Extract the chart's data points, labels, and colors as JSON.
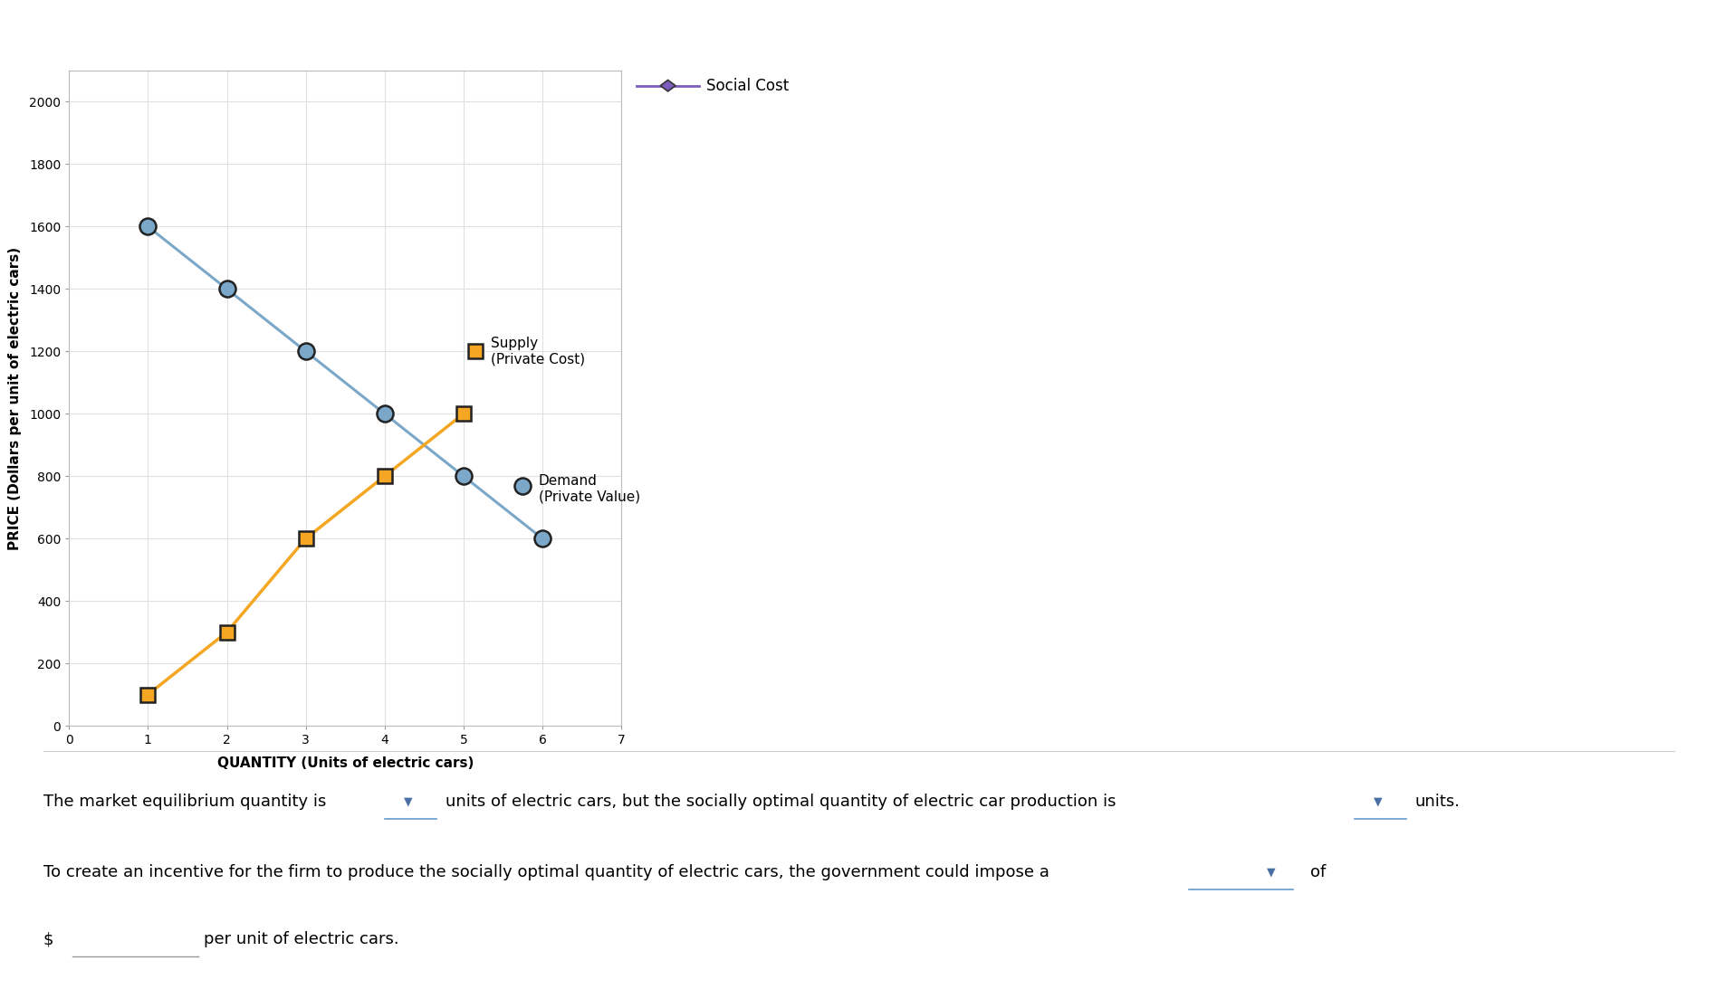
{
  "demand_x": [
    1,
    2,
    3,
    4,
    5,
    6
  ],
  "demand_y": [
    1600,
    1400,
    1200,
    1000,
    800,
    600
  ],
  "supply_x": [
    1,
    2,
    3,
    4,
    5
  ],
  "supply_y": [
    100,
    300,
    600,
    800,
    1000
  ],
  "demand_color": "#7ba7c9",
  "supply_color": "#f5a623",
  "social_cost_color": "#7c5cbf",
  "xlabel": "QUANTITY (Units of electric cars)",
  "ylabel": "PRICE (Dollars per unit of electric cars)",
  "xlim": [
    0,
    7
  ],
  "ylim": [
    0,
    2100
  ],
  "yticks": [
    0,
    200,
    400,
    600,
    800,
    1000,
    1200,
    1400,
    1600,
    1800,
    2000
  ],
  "xticks": [
    0,
    1,
    2,
    3,
    4,
    5,
    6,
    7
  ],
  "grid_color": "#e0e0e0",
  "background_color": "#ffffff",
  "text1": "The market equilibrium quantity is",
  "text2": "units of electric cars, but the socially optimal quantity of electric car production is",
  "text3": "units.",
  "text4": "To create an incentive for the firm to produce the socially optimal quantity of electric cars, the government could impose a",
  "text5": "of",
  "text6": "$",
  "text7": "per unit of electric cars.",
  "dropdown_color": "#4a6fa5",
  "supply_label_line1": "Supply",
  "supply_label_line2": "(Private Cost)",
  "demand_label_line1": "Demand",
  "demand_label_line2": "(Private Value)",
  "social_cost_label": "Social Cost"
}
